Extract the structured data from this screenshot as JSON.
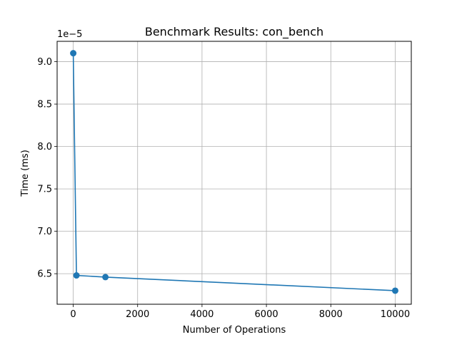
{
  "chart_data": {
    "type": "line",
    "title": "Benchmark Results: con_bench",
    "xlabel": "Number of Operations",
    "ylabel": "Time (ms)",
    "y_offset_label": "1e−5",
    "series": [
      {
        "color": "#1f77b4",
        "marker": "circle",
        "x": [
          1,
          100,
          1000,
          10000
        ],
        "y": [
          9.1,
          6.48,
          6.46,
          6.3
        ]
      }
    ],
    "xlim": [
      -500,
      10500
    ],
    "ylim": [
      6.14,
      9.24
    ],
    "xticks": [
      0,
      2000,
      4000,
      6000,
      8000,
      10000
    ],
    "xtick_labels": [
      "0",
      "2000",
      "4000",
      "6000",
      "8000",
      "10000"
    ],
    "yticks": [
      6.5,
      7.0,
      7.5,
      8.0,
      8.5,
      9.0
    ],
    "ytick_labels": [
      "6.5",
      "7.0",
      "7.5",
      "8.0",
      "8.5",
      "9.0"
    ],
    "grid": true,
    "legend": false
  }
}
